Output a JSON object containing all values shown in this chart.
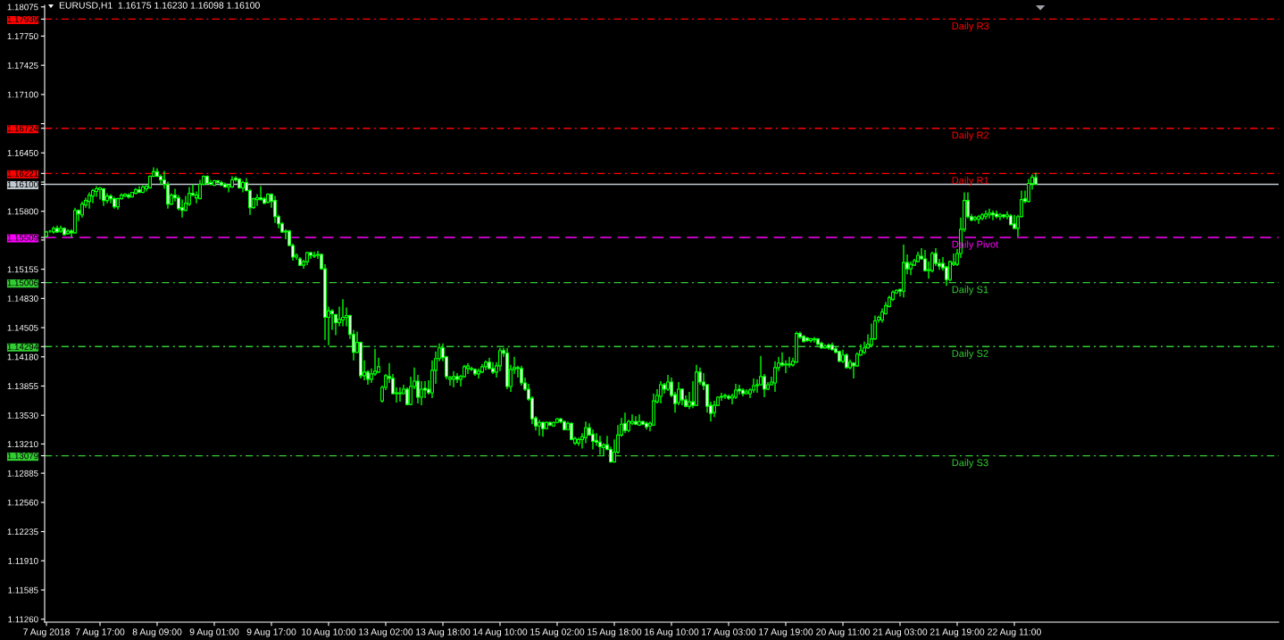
{
  "chart_data": {
    "type": "candlestick",
    "title": "EURUSD,H1  1.16175 1.16230 1.16098 1.16100",
    "color": "#00ff00",
    "categories": [
      "7 Aug 2018",
      null,
      null,
      null,
      null,
      null,
      null,
      null,
      null,
      null,
      null,
      null,
      null,
      null,
      null,
      "7 Aug 17:00",
      null,
      null,
      null,
      null,
      null,
      null,
      null,
      null,
      null,
      null,
      null,
      null,
      null,
      null,
      null,
      "8 Aug 09:00",
      null,
      null,
      null,
      null,
      null,
      null,
      null,
      null,
      null,
      null,
      null,
      null,
      null,
      null,
      null,
      "9 Aug 01:00",
      null,
      null,
      null,
      null,
      null,
      null,
      null,
      null,
      null,
      null,
      null,
      null,
      null,
      null,
      null,
      "9 Aug 17:00",
      null,
      null,
      null,
      null,
      null,
      null,
      null,
      null,
      null,
      null,
      null,
      null,
      null,
      null,
      null,
      "10 Aug 10:00",
      null,
      null,
      null,
      null,
      null,
      null,
      null,
      null,
      null,
      null,
      null,
      null,
      null,
      null,
      null,
      "13 Aug 02:00",
      null,
      null,
      null,
      null,
      null,
      null,
      null,
      null,
      null,
      null,
      null,
      null,
      null,
      null,
      null,
      "13 Aug 18:00",
      null,
      null,
      null,
      null,
      null,
      null,
      null,
      null,
      null,
      null,
      null,
      null,
      null,
      null,
      null,
      "14 Aug 10:00",
      null,
      null,
      null,
      null,
      null,
      null,
      null,
      null,
      null,
      null,
      null,
      null,
      null,
      null,
      null,
      "15 Aug 02:00",
      null,
      null,
      null,
      null,
      null,
      null,
      null,
      null,
      null,
      null,
      null,
      null,
      null,
      null,
      null,
      "15 Aug 18:00",
      null,
      null,
      null,
      null,
      null,
      null,
      null,
      null,
      null,
      null,
      null,
      null,
      null,
      null,
      null,
      "16 Aug 10:00",
      null,
      null,
      null,
      null,
      null,
      null,
      null,
      null,
      null,
      null,
      null,
      null,
      null,
      null,
      null,
      "17 Aug 03:00",
      null,
      null,
      null,
      null,
      null,
      null,
      null,
      null,
      null,
      null,
      null,
      null,
      null,
      null,
      null,
      "17 Aug 19:00",
      null,
      null,
      null,
      null,
      null,
      null,
      null,
      null,
      null,
      null,
      null,
      null,
      null,
      null,
      null,
      "20 Aug 11:00",
      null,
      null,
      null,
      null,
      null,
      null,
      null,
      null,
      null,
      null,
      null,
      null,
      null,
      null,
      null,
      "21 Aug 03:00",
      null,
      null,
      null,
      null,
      null,
      null,
      null,
      null,
      null,
      null,
      null,
      null,
      null,
      null,
      null,
      "21 Aug 19:00",
      null,
      null,
      null,
      null,
      null,
      null,
      null,
      null,
      null,
      null,
      null,
      null,
      null,
      null,
      null,
      "22 Aug 11:00",
      null,
      null,
      null,
      null,
      null,
      null
    ],
    "ohlc": [
      [
        1.1552,
        1.1558,
        1.1551,
        1.1557
      ],
      [
        1.1558,
        1.1559,
        1.1556,
        1.1558
      ],
      [
        1.1557,
        1.1563,
        1.1555,
        1.1561
      ],
      [
        1.1561,
        1.1564,
        1.1556,
        1.1557
      ],
      [
        1.1558,
        1.1564,
        1.1556,
        1.1561
      ],
      [
        1.1561,
        1.1562,
        1.1553,
        1.1554
      ],
      [
        1.1555,
        1.156,
        1.1554,
        1.1558
      ],
      [
        1.1558,
        1.156,
        1.1551,
        1.1556
      ],
      [
        1.1556,
        1.1584,
        1.1555,
        1.1581
      ],
      [
        1.1581,
        1.1582,
        1.1569,
        1.1577
      ],
      [
        1.1576,
        1.1591,
        1.1573,
        1.1588
      ],
      [
        1.1587,
        1.1595,
        1.1584,
        1.1592
      ],
      [
        1.1591,
        1.1601,
        1.1583,
        1.1598
      ],
      [
        1.1597,
        1.1605,
        1.1589,
        1.1603
      ],
      [
        1.1602,
        1.1608,
        1.1596,
        1.1605
      ],
      [
        1.1604,
        1.1607,
        1.1593,
        1.1606
      ],
      [
        1.1605,
        1.1606,
        1.1586,
        1.1592
      ],
      [
        1.1592,
        1.16,
        1.1589,
        1.1597
      ],
      [
        1.1597,
        1.1599,
        1.1589,
        1.1594
      ],
      [
        1.1594,
        1.1596,
        1.1583,
        1.1585
      ],
      [
        1.1585,
        1.1595,
        1.1582,
        1.1594
      ],
      [
        1.1594,
        1.16,
        1.1593,
        1.1598
      ],
      [
        1.1597,
        1.16,
        1.1596,
        1.1599
      ],
      [
        1.1598,
        1.16,
        1.1594,
        1.1596
      ],
      [
        1.1596,
        1.1601,
        1.1596,
        1.1601
      ],
      [
        1.16,
        1.1606,
        1.1599,
        1.1604
      ],
      [
        1.1604,
        1.1608,
        1.16,
        1.1601
      ],
      [
        1.1601,
        1.1609,
        1.16,
        1.1607
      ],
      [
        1.1605,
        1.1609,
        1.1602,
        1.1608
      ],
      [
        1.1606,
        1.162,
        1.1605,
        1.1619
      ],
      [
        1.1619,
        1.1629,
        1.1618,
        1.1624
      ],
      [
        1.1624,
        1.1628,
        1.1618,
        1.1619
      ],
      [
        1.1619,
        1.1621,
        1.161,
        1.1615
      ],
      [
        1.1615,
        1.1625,
        1.1605,
        1.161
      ],
      [
        1.161,
        1.1613,
        1.1583,
        1.1588
      ],
      [
        1.1588,
        1.16,
        1.1587,
        1.1598
      ],
      [
        1.1598,
        1.1605,
        1.1591,
        1.1595
      ],
      [
        1.1595,
        1.1598,
        1.1581,
        1.1583
      ],
      [
        1.1584,
        1.1593,
        1.1573,
        1.1581
      ],
      [
        1.1581,
        1.1597,
        1.158,
        1.1589
      ],
      [
        1.1588,
        1.1607,
        1.1586,
        1.16
      ],
      [
        1.16,
        1.161,
        1.1597,
        1.1598
      ],
      [
        1.1595,
        1.1602,
        1.1589,
        1.1598
      ],
      [
        1.1594,
        1.1615,
        1.1594,
        1.161
      ],
      [
        1.161,
        1.162,
        1.1609,
        1.1619
      ],
      [
        1.1619,
        1.162,
        1.161,
        1.1611
      ],
      [
        1.1612,
        1.1615,
        1.1609,
        1.161
      ],
      [
        1.1609,
        1.1615,
        1.1608,
        1.1614
      ],
      [
        1.1614,
        1.1615,
        1.1611,
        1.1612
      ],
      [
        1.1612,
        1.1614,
        1.1608,
        1.1609
      ],
      [
        1.161,
        1.1612,
        1.1606,
        1.1607
      ],
      [
        1.1607,
        1.161,
        1.1601,
        1.1609
      ],
      [
        1.1607,
        1.1619,
        1.1606,
        1.1615
      ],
      [
        1.1617,
        1.1619,
        1.1613,
        1.1615
      ],
      [
        1.1616,
        1.1617,
        1.1605,
        1.1606
      ],
      [
        1.1606,
        1.1614,
        1.1601,
        1.1612
      ],
      [
        1.1612,
        1.1617,
        1.1602,
        1.1603
      ],
      [
        1.1603,
        1.1605,
        1.1576,
        1.1584
      ],
      [
        1.1584,
        1.1595,
        1.1583,
        1.1594
      ],
      [
        1.1593,
        1.1599,
        1.1586,
        1.1595
      ],
      [
        1.1595,
        1.1608,
        1.1592,
        1.1593
      ],
      [
        1.1594,
        1.1596,
        1.1588,
        1.1589
      ],
      [
        1.159,
        1.16,
        1.1589,
        1.1599
      ],
      [
        1.1599,
        1.16,
        1.1584,
        1.1591
      ],
      [
        1.1592,
        1.1597,
        1.1567,
        1.1574
      ],
      [
        1.1574,
        1.1576,
        1.1561,
        1.1566
      ],
      [
        1.1566,
        1.1568,
        1.1556,
        1.1557
      ],
      [
        1.1557,
        1.156,
        1.1549,
        1.1558
      ],
      [
        1.1558,
        1.1559,
        1.1541,
        1.1542
      ],
      [
        1.1542,
        1.1544,
        1.1525,
        1.1529
      ],
      [
        1.1529,
        1.1533,
        1.1526,
        1.1531
      ],
      [
        1.1527,
        1.1529,
        1.1519,
        1.152
      ],
      [
        1.152,
        1.1526,
        1.1516,
        1.1524
      ],
      [
        1.1524,
        1.1535,
        1.152,
        1.1534
      ],
      [
        1.1534,
        1.1535,
        1.1527,
        1.1531
      ],
      [
        1.153,
        1.1535,
        1.1528,
        1.1531
      ],
      [
        1.1531,
        1.1536,
        1.1527,
        1.1532
      ],
      [
        1.1532,
        1.1533,
        1.1515,
        1.1516
      ],
      [
        1.1516,
        1.1521,
        1.1437,
        1.1462
      ],
      [
        1.1462,
        1.1474,
        1.1431,
        1.1469
      ],
      [
        1.1469,
        1.1471,
        1.1448,
        1.1466
      ],
      [
        1.1465,
        1.1466,
        1.1442,
        1.1456
      ],
      [
        1.1456,
        1.1474,
        1.1452,
        1.146
      ],
      [
        1.1459,
        1.1482,
        1.1452,
        1.1462
      ],
      [
        1.1462,
        1.1473,
        1.1452,
        1.1464
      ],
      [
        1.1464,
        1.1465,
        1.1438,
        1.1443
      ],
      [
        1.1443,
        1.1448,
        1.1414,
        1.1423
      ],
      [
        1.1423,
        1.1446,
        1.1422,
        1.1434
      ],
      [
        1.1434,
        1.1435,
        1.1394,
        1.1397
      ],
      [
        1.1397,
        1.1414,
        1.1392,
        1.1401
      ],
      [
        1.1401,
        1.1403,
        1.1387,
        1.1393
      ],
      [
        1.1393,
        1.1405,
        1.1389,
        1.1399
      ],
      [
        1.1399,
        1.1427,
        1.1397,
        1.1402
      ],
      [
        1.1401,
        1.1417,
        1.14,
        1.1407
      ],
      [
        1.1369,
        1.1386,
        1.1367,
        1.1384
      ],
      [
        1.1384,
        1.1399,
        1.1381,
        1.1397
      ],
      [
        1.1396,
        1.1411,
        1.1389,
        1.1394
      ],
      [
        1.1394,
        1.1399,
        1.1376,
        1.1377
      ],
      [
        1.1377,
        1.1384,
        1.1367,
        1.1378
      ],
      [
        1.1378,
        1.1384,
        1.1368,
        1.1377
      ],
      [
        1.1377,
        1.1387,
        1.1376,
        1.1382
      ],
      [
        1.1382,
        1.1384,
        1.1364,
        1.1365
      ],
      [
        1.1365,
        1.1396,
        1.1364,
        1.1385
      ],
      [
        1.1385,
        1.1406,
        1.1382,
        1.1391
      ],
      [
        1.1391,
        1.1398,
        1.1366,
        1.1373
      ],
      [
        1.1373,
        1.1391,
        1.1364,
        1.1382
      ],
      [
        1.1383,
        1.1391,
        1.1372,
        1.1381
      ],
      [
        1.1382,
        1.1392,
        1.1376,
        1.1378
      ],
      [
        1.1378,
        1.1414,
        1.1372,
        1.1403
      ],
      [
        1.1403,
        1.1424,
        1.1388,
        1.1416
      ],
      [
        1.1416,
        1.1433,
        1.1413,
        1.1428
      ],
      [
        1.1428,
        1.1433,
        1.1413,
        1.1417
      ],
      [
        1.1418,
        1.1419,
        1.1393,
        1.1396
      ],
      [
        1.1393,
        1.1397,
        1.1386,
        1.1395
      ],
      [
        1.1393,
        1.1402,
        1.1384,
        1.1396
      ],
      [
        1.1396,
        1.14,
        1.1389,
        1.1393
      ],
      [
        1.1393,
        1.1398,
        1.1385,
        1.1396
      ],
      [
        1.1396,
        1.1409,
        1.1395,
        1.1407
      ],
      [
        1.1405,
        1.1411,
        1.1399,
        1.1408
      ],
      [
        1.1405,
        1.1407,
        1.1402,
        1.1404
      ],
      [
        1.1404,
        1.1405,
        1.1397,
        1.1399
      ],
      [
        1.1399,
        1.1405,
        1.1394,
        1.1402
      ],
      [
        1.1401,
        1.141,
        1.14,
        1.1407
      ],
      [
        1.1407,
        1.1414,
        1.1403,
        1.1412
      ],
      [
        1.1412,
        1.1417,
        1.1404,
        1.1405
      ],
      [
        1.1405,
        1.1412,
        1.1399,
        1.1401
      ],
      [
        1.1401,
        1.1412,
        1.1395,
        1.1408
      ],
      [
        1.1408,
        1.1428,
        1.1402,
        1.1425
      ],
      [
        1.1425,
        1.1428,
        1.1418,
        1.1422
      ],
      [
        1.1422,
        1.1428,
        1.1382,
        1.1385
      ],
      [
        1.1385,
        1.1409,
        1.1379,
        1.1404
      ],
      [
        1.1404,
        1.1418,
        1.1399,
        1.1406
      ],
      [
        1.1406,
        1.1408,
        1.1395,
        1.1405
      ],
      [
        1.1405,
        1.1408,
        1.1386,
        1.1389
      ],
      [
        1.1389,
        1.1395,
        1.138,
        1.1382
      ],
      [
        1.1382,
        1.1388,
        1.1369,
        1.1371
      ],
      [
        1.1372,
        1.1374,
        1.1343,
        1.1349
      ],
      [
        1.135,
        1.1352,
        1.1336,
        1.1341
      ],
      [
        1.1341,
        1.1348,
        1.133,
        1.1345
      ],
      [
        1.1345,
        1.1346,
        1.1329,
        1.1338
      ],
      [
        1.1338,
        1.1346,
        1.1337,
        1.1345
      ],
      [
        1.1345,
        1.1346,
        1.1341,
        1.1342
      ],
      [
        1.1341,
        1.1346,
        1.134,
        1.1345
      ],
      [
        1.1345,
        1.135,
        1.1344,
        1.1349
      ],
      [
        1.1349,
        1.135,
        1.1344,
        1.1346
      ],
      [
        1.1346,
        1.1347,
        1.1336,
        1.1337
      ],
      [
        1.1337,
        1.1346,
        1.1336,
        1.1344
      ],
      [
        1.1344,
        1.1345,
        1.1325,
        1.1326
      ],
      [
        1.1322,
        1.1329,
        1.132,
        1.1327
      ],
      [
        1.1322,
        1.1328,
        1.1319,
        1.1326
      ],
      [
        1.1326,
        1.1333,
        1.1316,
        1.1329
      ],
      [
        1.1328,
        1.1346,
        1.1322,
        1.1339
      ],
      [
        1.1339,
        1.1344,
        1.133,
        1.1331
      ],
      [
        1.1332,
        1.1337,
        1.1315,
        1.1324
      ],
      [
        1.1325,
        1.1333,
        1.1319,
        1.1323
      ],
      [
        1.1323,
        1.133,
        1.1309,
        1.1318
      ],
      [
        1.1317,
        1.1322,
        1.1308,
        1.132
      ],
      [
        1.132,
        1.133,
        1.1314,
        1.1315
      ],
      [
        1.1315,
        1.1318,
        1.13,
        1.1301
      ],
      [
        1.1301,
        1.1326,
        1.13,
        1.1312
      ],
      [
        1.1312,
        1.1342,
        1.131,
        1.1331
      ],
      [
        1.1331,
        1.135,
        1.1329,
        1.1343
      ],
      [
        1.1344,
        1.1356,
        1.1333,
        1.1336
      ],
      [
        1.1336,
        1.1348,
        1.1334,
        1.1346
      ],
      [
        1.1344,
        1.1354,
        1.1342,
        1.1346
      ],
      [
        1.1346,
        1.1352,
        1.1342,
        1.1343
      ],
      [
        1.1342,
        1.1354,
        1.1341,
        1.1346
      ],
      [
        1.1346,
        1.1347,
        1.1342,
        1.1343
      ],
      [
        1.1344,
        1.1346,
        1.1337,
        1.134
      ],
      [
        1.1341,
        1.1346,
        1.1335,
        1.1344
      ],
      [
        1.1342,
        1.1377,
        1.1341,
        1.1369
      ],
      [
        1.1368,
        1.1382,
        1.1366,
        1.1375
      ],
      [
        1.1374,
        1.1391,
        1.1366,
        1.1387
      ],
      [
        1.1387,
        1.1389,
        1.1377,
        1.1382
      ],
      [
        1.1382,
        1.1398,
        1.138,
        1.139
      ],
      [
        1.139,
        1.1395,
        1.1373,
        1.1375
      ],
      [
        1.1376,
        1.1379,
        1.1356,
        1.1366
      ],
      [
        1.1367,
        1.139,
        1.1364,
        1.1382
      ],
      [
        1.1382,
        1.1383,
        1.1364,
        1.137
      ],
      [
        1.137,
        1.1375,
        1.1362,
        1.1363
      ],
      [
        1.1363,
        1.1379,
        1.136,
        1.1368
      ],
      [
        1.1368,
        1.1391,
        1.1361,
        1.1364
      ],
      [
        1.1364,
        1.1409,
        1.1363,
        1.1401
      ],
      [
        1.1401,
        1.1406,
        1.1387,
        1.139
      ],
      [
        1.139,
        1.14,
        1.1381,
        1.1386
      ],
      [
        1.1387,
        1.1388,
        1.1356,
        1.1363
      ],
      [
        1.1364,
        1.1368,
        1.1346,
        1.1355
      ],
      [
        1.1356,
        1.1369,
        1.1351,
        1.1364
      ],
      [
        1.1364,
        1.1374,
        1.1363,
        1.1373
      ],
      [
        1.1373,
        1.1378,
        1.1369,
        1.1374
      ],
      [
        1.1374,
        1.1377,
        1.1371,
        1.1375
      ],
      [
        1.1374,
        1.1376,
        1.137,
        1.1372
      ],
      [
        1.1372,
        1.1377,
        1.1365,
        1.1374
      ],
      [
        1.1373,
        1.1388,
        1.1371,
        1.1381
      ],
      [
        1.1382,
        1.1387,
        1.1376,
        1.138
      ],
      [
        1.1381,
        1.1383,
        1.1374,
        1.1377
      ],
      [
        1.1377,
        1.1382,
        1.1376,
        1.1379
      ],
      [
        1.1377,
        1.1383,
        1.1372,
        1.1381
      ],
      [
        1.1381,
        1.1394,
        1.1378,
        1.1386
      ],
      [
        1.1386,
        1.1393,
        1.1378,
        1.1387
      ],
      [
        1.1387,
        1.1419,
        1.1386,
        1.1396
      ],
      [
        1.1396,
        1.1399,
        1.1373,
        1.1382
      ],
      [
        1.1382,
        1.139,
        1.1381,
        1.1387
      ],
      [
        1.1387,
        1.1396,
        1.1386,
        1.139
      ],
      [
        1.1389,
        1.1413,
        1.1379,
        1.1406
      ],
      [
        1.1406,
        1.1418,
        1.1402,
        1.1411
      ],
      [
        1.1411,
        1.1423,
        1.1407,
        1.1409
      ],
      [
        1.1409,
        1.1414,
        1.14,
        1.141
      ],
      [
        1.1409,
        1.1418,
        1.1406,
        1.141
      ],
      [
        1.1409,
        1.1417,
        1.1407,
        1.1413
      ],
      [
        1.1412,
        1.1446,
        1.1411,
        1.1444
      ],
      [
        1.1444,
        1.1446,
        1.1438,
        1.144
      ],
      [
        1.1441,
        1.1442,
        1.1434,
        1.1435
      ],
      [
        1.1439,
        1.144,
        1.1435,
        1.1436
      ],
      [
        1.1436,
        1.1439,
        1.1434,
        1.1438
      ],
      [
        1.1438,
        1.144,
        1.1434,
        1.1437
      ],
      [
        1.1438,
        1.1439,
        1.1431,
        1.1432
      ],
      [
        1.1433,
        1.1435,
        1.1427,
        1.1428
      ],
      [
        1.1428,
        1.1432,
        1.1427,
        1.143
      ],
      [
        1.1431,
        1.1433,
        1.1426,
        1.1428
      ],
      [
        1.1431,
        1.1434,
        1.1425,
        1.1426
      ],
      [
        1.1427,
        1.1429,
        1.1422,
        1.1423
      ],
      [
        1.1424,
        1.1425,
        1.1412,
        1.1413
      ],
      [
        1.1413,
        1.1426,
        1.1411,
        1.142
      ],
      [
        1.142,
        1.1422,
        1.1405,
        1.1406
      ],
      [
        1.1406,
        1.1415,
        1.1404,
        1.1412
      ],
      [
        1.1411,
        1.1412,
        1.1394,
        1.1408
      ],
      [
        1.1408,
        1.1423,
        1.1407,
        1.1421
      ],
      [
        1.142,
        1.1432,
        1.1419,
        1.1425
      ],
      [
        1.1423,
        1.1435,
        1.1421,
        1.1428
      ],
      [
        1.1428,
        1.1443,
        1.1427,
        1.1432
      ],
      [
        1.1431,
        1.1455,
        1.143,
        1.1438
      ],
      [
        1.1438,
        1.1464,
        1.1437,
        1.1458
      ],
      [
        1.1459,
        1.1464,
        1.1456,
        1.1462
      ],
      [
        1.1459,
        1.1472,
        1.1456,
        1.1468
      ],
      [
        1.1466,
        1.1479,
        1.1465,
        1.1475
      ],
      [
        1.1474,
        1.1486,
        1.1473,
        1.1484
      ],
      [
        1.1482,
        1.1492,
        1.148,
        1.149
      ],
      [
        1.1489,
        1.1493,
        1.1488,
        1.1492
      ],
      [
        1.1493,
        1.1494,
        1.1485,
        1.1491
      ],
      [
        1.1491,
        1.1543,
        1.1484,
        1.1523
      ],
      [
        1.1523,
        1.1532,
        1.151,
        1.1516
      ],
      [
        1.1516,
        1.1524,
        1.1509,
        1.1521
      ],
      [
        1.152,
        1.1527,
        1.1519,
        1.1525
      ],
      [
        1.1524,
        1.1535,
        1.1523,
        1.1531
      ],
      [
        1.153,
        1.1539,
        1.1526,
        1.1527
      ],
      [
        1.1527,
        1.1537,
        1.1513,
        1.1514
      ],
      [
        1.1514,
        1.1524,
        1.1505,
        1.1515
      ],
      [
        1.1514,
        1.1535,
        1.1512,
        1.1533
      ],
      [
        1.1533,
        1.1539,
        1.1519,
        1.1522
      ],
      [
        1.1522,
        1.1527,
        1.1515,
        1.1519
      ],
      [
        1.1522,
        1.1529,
        1.1514,
        1.1517
      ],
      [
        1.1518,
        1.1519,
        1.1497,
        1.1504
      ],
      [
        1.1504,
        1.1525,
        1.1502,
        1.1524
      ],
      [
        1.1521,
        1.1533,
        1.1519,
        1.1523
      ],
      [
        1.1521,
        1.1538,
        1.1519,
        1.1533
      ],
      [
        1.1533,
        1.1573,
        1.1528,
        1.156
      ],
      [
        1.156,
        1.1601,
        1.1557,
        1.1592
      ],
      [
        1.1592,
        1.1601,
        1.1572,
        1.1574
      ],
      [
        1.1574,
        1.1577,
        1.1569,
        1.157
      ],
      [
        1.1571,
        1.1575,
        1.1569,
        1.1573
      ],
      [
        1.1571,
        1.1576,
        1.1566,
        1.1574
      ],
      [
        1.1572,
        1.1578,
        1.157,
        1.1576
      ],
      [
        1.1574,
        1.1581,
        1.1571,
        1.1577
      ],
      [
        1.1576,
        1.1583,
        1.1572,
        1.1578
      ],
      [
        1.1578,
        1.1581,
        1.157,
        1.1576
      ],
      [
        1.1577,
        1.1581,
        1.1572,
        1.1574
      ],
      [
        1.1574,
        1.1578,
        1.157,
        1.1576
      ],
      [
        1.1576,
        1.1577,
        1.1572,
        1.1574
      ],
      [
        1.1574,
        1.158,
        1.1571,
        1.1576
      ],
      [
        1.1575,
        1.1577,
        1.1564,
        1.1565
      ],
      [
        1.1566,
        1.1576,
        1.156,
        1.1561
      ],
      [
        1.1561,
        1.1576,
        1.1552,
        1.1574
      ],
      [
        1.1574,
        1.1603,
        1.1573,
        1.1593
      ],
      [
        1.1594,
        1.1603,
        1.1589,
        1.1591
      ],
      [
        1.1591,
        1.1616,
        1.159,
        1.1611
      ],
      [
        1.1611,
        1.1621,
        1.1604,
        1.1618
      ],
      [
        1.16175,
        1.1623,
        1.16098,
        1.161
      ]
    ],
    "ylim": [
      1.11227,
      1.18092
    ],
    "yticks": [
      1.18075,
      1.17939,
      {
        "value": 1.1775,
        "label": "1.17750"
      },
      1.17425,
      {
        "value": 1.171,
        "label": "1.17100"
      },
      {
        "value": 1.16775,
        "label": null
      },
      1.16724,
      {
        "value": 1.1645,
        "label": "1.16450"
      },
      1.16221,
      {
        "value": 1.16125,
        "label": null
      },
      {
        "value": 1.161,
        "label": "1.16100"
      },
      {
        "value": 1.158,
        "label": "1.15800"
      },
      1.15509,
      {
        "value": 1.1548,
        "label": null
      },
      1.15155,
      1.15006,
      {
        "value": 1.1483,
        "label": "1.14830"
      },
      1.14505,
      1.14294,
      {
        "value": 1.1418,
        "label": "1.14180"
      },
      1.13855,
      {
        "value": 1.1353,
        "label": "1.13530"
      },
      {
        "value": 1.1321,
        "label": "1.13210"
      },
      1.13079,
      1.12885,
      {
        "value": 1.1256,
        "label": "1.12560"
      },
      1.12235,
      {
        "value": 1.1191,
        "label": "1.11910"
      },
      1.11585,
      {
        "value": 1.1126,
        "label": "1.11260"
      }
    ],
    "ref_lines": [
      {
        "axis": "y",
        "value": 1.17939,
        "label": "Daily R3",
        "color": "#ff0000",
        "line_style": "dashdot"
      },
      {
        "axis": "y",
        "value": 1.16724,
        "label": "Daily R2",
        "color": "#ff0000",
        "line_style": "dashdot"
      },
      {
        "axis": "y",
        "value": 1.16221,
        "label": "Daily R1",
        "color": "#ff0000",
        "line_style": "dashdot"
      },
      {
        "axis": "y",
        "value": 1.161,
        "color": "#c0c8d0",
        "line_style": "solid"
      },
      {
        "axis": "y",
        "value": 1.15509,
        "label": "Daily Pivot",
        "color": "#ff00ff",
        "line_style": "dashed"
      },
      {
        "axis": "y",
        "value": 1.15006,
        "label": "Daily S1",
        "color": "#32cd32",
        "line_style": "dashdot"
      },
      {
        "axis": "y",
        "value": 1.14294,
        "label": "Daily S2",
        "color": "#32cd32",
        "line_style": "dashdot"
      },
      {
        "axis": "y",
        "value": 1.13079,
        "label": "Daily S3",
        "color": "#32cd32",
        "line_style": "dashdot"
      }
    ]
  }
}
